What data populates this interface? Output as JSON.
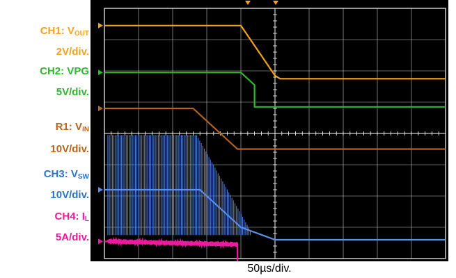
{
  "labels": {
    "ch1_name": "CH1: V",
    "ch1_sub": "OUT",
    "ch1_scale": "2V/div.",
    "ch2_name": "CH2: VPG",
    "ch2_scale": "5V/div.",
    "r1_name": "R1: V",
    "r1_sub": "IN",
    "r1_scale": "10V/div.",
    "ch3_name": "CH3: V",
    "ch3_sub": "SW",
    "ch3_scale": "10V/div.",
    "ch4_name": "CH4: I",
    "ch4_sub": "L",
    "ch4_scale": "5A/div."
  },
  "colors": {
    "ch1": "#f7a21b",
    "ch2": "#2db82d",
    "r1": "#b8641a",
    "ch3": "#5b8ef0",
    "ch4": "#ee1a9e",
    "grid": "#ffffff",
    "screen": "#000000"
  },
  "chart_data": {
    "type": "line",
    "xlabel": "50µs/div.",
    "x_divisions": 10,
    "y_divisions": 8,
    "x_unit": "div",
    "y_unit": "div",
    "series": [
      {
        "channel": "ch1",
        "points": [
          [
            0,
            7.45
          ],
          [
            4.0,
            7.45
          ],
          [
            5.0,
            5.85
          ],
          [
            5.15,
            5.75
          ],
          [
            10,
            5.75
          ]
        ]
      },
      {
        "channel": "ch2",
        "points": [
          [
            0,
            5.95
          ],
          [
            4.0,
            5.95
          ],
          [
            4.4,
            5.55
          ],
          [
            4.4,
            4.85
          ],
          [
            10,
            4.85
          ]
        ]
      },
      {
        "channel": "r1",
        "points": [
          [
            0,
            4.8
          ],
          [
            2.6,
            4.8
          ],
          [
            3.9,
            3.5
          ],
          [
            10,
            3.5
          ]
        ]
      },
      {
        "channel": "ch3",
        "points": [
          [
            0,
            2.2
          ],
          [
            2.8,
            2.2
          ],
          [
            4.0,
            1.0
          ],
          [
            5.0,
            0.6
          ],
          [
            10,
            0.6
          ]
        ],
        "switching": {
          "x_start": 0.1,
          "x_end": 4.3,
          "high": 3.95,
          "low": 0.75
        }
      },
      {
        "channel": "ch4",
        "points": [
          [
            0,
            0.55
          ],
          [
            3.9,
            0.45
          ],
          [
            3.9,
            -0.6
          ],
          [
            10,
            -0.6
          ]
        ],
        "ripple": {
          "x_start": 0.1,
          "x_end": 3.9,
          "amplitude": 0.08
        }
      }
    ]
  }
}
